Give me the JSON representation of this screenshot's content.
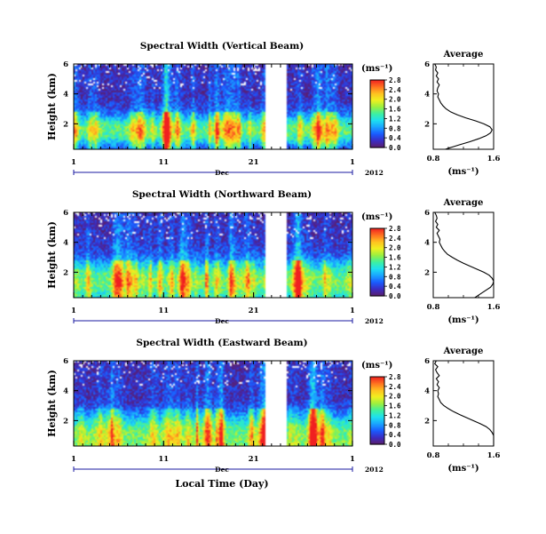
{
  "chart_data": [
    {
      "type": "heatmap",
      "title": "Spectral Width (Vertical Beam)",
      "ylabel": "Height (km)",
      "yticks": [
        "6",
        "4",
        "2"
      ],
      "ylim": [
        0.3,
        6
      ],
      "xticks": [
        "1",
        "11",
        "21",
        "1"
      ],
      "xlim": [
        1,
        32
      ],
      "month_label": "Dec",
      "year_label": "2012",
      "data_gap_days": [
        22.3,
        24.7
      ],
      "colorbar": {
        "unit": "(ms⁻¹)",
        "ticks": [
          "2.8",
          "2.4",
          "2.0",
          "1.6",
          "1.2",
          "0.8",
          "0.4",
          "0.0"
        ],
        "range": [
          0.0,
          2.8
        ],
        "colors": [
          "#5a1f6e",
          "#3b2cc2",
          "#1a5cff",
          "#1aa3ff",
          "#1ee0f0",
          "#3ef0a0",
          "#9af040",
          "#f0f020",
          "#ffc020",
          "#ff7020",
          "#f02020"
        ]
      },
      "profile": {
        "title": "Average",
        "xlabel": "(ms⁻¹)",
        "xticks": [
          "0.8",
          "1.6"
        ],
        "xlim": [
          0.8,
          1.6
        ],
        "yticks": [
          "6",
          "4",
          "2"
        ],
        "ylim": [
          0.3,
          6
        ],
        "height_km": [
          6.0,
          5.8,
          5.6,
          5.4,
          5.2,
          5.0,
          4.8,
          4.6,
          4.4,
          4.2,
          4.0,
          3.8,
          3.6,
          3.4,
          3.2,
          3.0,
          2.8,
          2.6,
          2.4,
          2.2,
          2.0,
          1.8,
          1.6,
          1.4,
          1.2,
          1.0,
          0.8,
          0.6,
          0.4,
          0.3
        ],
        "width_ms": [
          0.82,
          0.84,
          0.83,
          0.86,
          0.84,
          0.87,
          0.85,
          0.88,
          0.86,
          0.85,
          0.87,
          0.86,
          0.88,
          0.9,
          0.93,
          0.97,
          1.03,
          1.12,
          1.23,
          1.36,
          1.47,
          1.55,
          1.58,
          1.56,
          1.5,
          1.4,
          1.28,
          1.15,
          1.02,
          0.96
        ]
      }
    },
    {
      "type": "heatmap",
      "title": "Spectral Width (Northward Beam)",
      "ylabel": "Height (km)",
      "yticks": [
        "6",
        "4",
        "2"
      ],
      "ylim": [
        0.3,
        6
      ],
      "xticks": [
        "1",
        "11",
        "21",
        "1"
      ],
      "xlim": [
        1,
        32
      ],
      "month_label": "Dec",
      "year_label": "2012",
      "data_gap_days": [
        22.3,
        24.7
      ],
      "colorbar": {
        "unit": "(ms⁻¹)",
        "ticks": [
          "2.8",
          "2.4",
          "2.0",
          "1.6",
          "1.2",
          "0.8",
          "0.4",
          "0.0"
        ],
        "range": [
          0.0,
          2.8
        ],
        "colors": [
          "#5a1f6e",
          "#3b2cc2",
          "#1a5cff",
          "#1aa3ff",
          "#1ee0f0",
          "#3ef0a0",
          "#9af040",
          "#f0f020",
          "#ffc020",
          "#ff7020",
          "#f02020"
        ]
      },
      "profile": {
        "title": "Average",
        "xlabel": "(ms⁻¹)",
        "xticks": [
          "0.8",
          "1.6"
        ],
        "xlim": [
          0.8,
          1.6
        ],
        "yticks": [
          "6",
          "4",
          "2"
        ],
        "ylim": [
          0.3,
          6
        ],
        "height_km": [
          6.0,
          5.8,
          5.6,
          5.4,
          5.2,
          5.0,
          4.8,
          4.6,
          4.4,
          4.2,
          4.0,
          3.8,
          3.6,
          3.4,
          3.2,
          3.0,
          2.8,
          2.6,
          2.4,
          2.2,
          2.0,
          1.8,
          1.6,
          1.4,
          1.2,
          1.0,
          0.8,
          0.6,
          0.4,
          0.3
        ],
        "width_ms": [
          0.82,
          0.84,
          0.85,
          0.83,
          0.86,
          0.84,
          0.88,
          0.85,
          0.87,
          0.89,
          0.88,
          0.9,
          0.92,
          0.95,
          0.99,
          1.05,
          1.12,
          1.2,
          1.29,
          1.38,
          1.47,
          1.54,
          1.58,
          1.6,
          1.59,
          1.56,
          1.5,
          1.44,
          1.38,
          1.35
        ]
      }
    },
    {
      "type": "heatmap",
      "title": "Spectral Width (Eastward Beam)",
      "ylabel": "Height (km)",
      "yticks": [
        "6",
        "4",
        "2"
      ],
      "ylim": [
        0.3,
        6
      ],
      "xticks": [
        "1",
        "11",
        "21",
        "1"
      ],
      "xlim": [
        1,
        32
      ],
      "month_label": "Dec",
      "year_label": "2012",
      "xlabel": "Local Time (Day)",
      "data_gap_days": [
        22.3,
        24.7
      ],
      "colorbar": {
        "unit": "(ms⁻¹)",
        "ticks": [
          "2.8",
          "2.4",
          "2.0",
          "1.6",
          "1.2",
          "0.8",
          "0.4",
          "0.0"
        ],
        "range": [
          0.0,
          2.8
        ],
        "colors": [
          "#5a1f6e",
          "#3b2cc2",
          "#1a5cff",
          "#1aa3ff",
          "#1ee0f0",
          "#3ef0a0",
          "#9af040",
          "#f0f020",
          "#ffc020",
          "#ff7020",
          "#f02020"
        ]
      },
      "profile": {
        "title": "Average",
        "xlabel": "(ms⁻¹)",
        "xticks": [
          "0.8",
          "1.6"
        ],
        "xlim": [
          0.8,
          1.6
        ],
        "yticks": [
          "6",
          "4",
          "2"
        ],
        "ylim": [
          0.3,
          6
        ],
        "height_km": [
          6.0,
          5.8,
          5.6,
          5.4,
          5.2,
          5.0,
          4.8,
          4.6,
          4.4,
          4.2,
          4.0,
          3.8,
          3.6,
          3.4,
          3.2,
          3.0,
          2.8,
          2.6,
          2.4,
          2.2,
          2.0,
          1.8,
          1.6,
          1.4,
          1.2,
          1.0,
          0.8,
          0.6,
          0.4,
          0.3
        ],
        "width_ms": [
          0.84,
          0.82,
          0.86,
          0.83,
          0.85,
          0.88,
          0.84,
          0.87,
          0.85,
          0.88,
          0.86,
          0.87,
          0.86,
          0.88,
          0.9,
          0.94,
          1.0,
          1.07,
          1.15,
          1.24,
          1.33,
          1.42,
          1.5,
          1.55,
          1.58,
          1.6,
          1.6,
          1.6,
          1.6,
          1.6
        ]
      }
    }
  ]
}
